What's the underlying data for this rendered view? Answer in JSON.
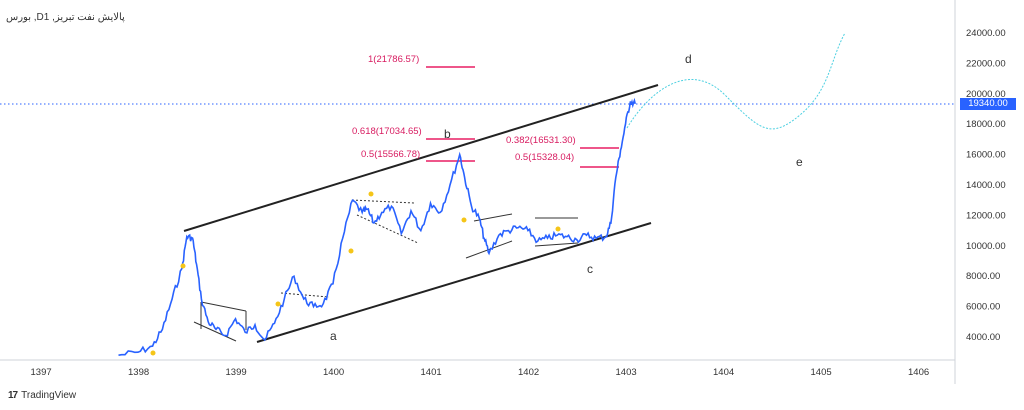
{
  "title": "بورس ,Dپالایش نفت تبریز, 1",
  "brand": {
    "logo": "17",
    "name": "TradingView"
  },
  "last_price": "19340.00",
  "colors": {
    "price": "#2962ff",
    "fib": "#e91e63",
    "channel": "#222222",
    "projection": "#4dd0e1",
    "dots": "#f5c518"
  },
  "chart_data": {
    "type": "line",
    "title": "بورس ,Dپالایش نفت تبریز, 1",
    "x_ticks": [
      "1397",
      "1398",
      "1399",
      "1400",
      "1401",
      "1402",
      "1403",
      "1404",
      "1405",
      "1406"
    ],
    "y_ticks": [
      "4000.00",
      "6000.00",
      "8000.00",
      "10000.00",
      "12000.00",
      "14000.00",
      "16000.00",
      "18000.00",
      "20000.00",
      "22000.00",
      "24000.00"
    ],
    "ylim": [
      3000,
      25000
    ],
    "xlim": [
      1396.8,
      1406.3
    ],
    "series": [
      {
        "x": [
          1397.8,
          1398.0,
          1398.15,
          1398.25,
          1398.35,
          1398.45,
          1398.5,
          1398.56,
          1398.6,
          1398.65,
          1398.72,
          1398.8,
          1398.9,
          1399.0,
          1399.1,
          1399.2,
          1399.3,
          1399.4,
          1399.5,
          1399.6,
          1399.7,
          1399.8,
          1399.9,
          1400.0,
          1400.1,
          1400.2,
          1400.3,
          1400.35,
          1400.42,
          1400.5,
          1400.6,
          1400.7,
          1400.8,
          1400.9,
          1401.0,
          1401.1,
          1401.2,
          1401.3,
          1401.35,
          1401.42,
          1401.5,
          1401.55,
          1401.6,
          1401.7,
          1401.8,
          1401.9,
          1402.0,
          1402.1,
          1402.2,
          1402.3,
          1402.4,
          1402.5,
          1402.6,
          1402.7,
          1402.8,
          1402.85,
          1402.9,
          1402.95,
          1403.0,
          1403.05,
          1403.1
        ],
        "y": [
          2800,
          3000,
          3400,
          4500,
          6500,
          8500,
          10600,
          10500,
          8800,
          6500,
          5000,
          4500,
          4100,
          5200,
          4300,
          4800,
          3800,
          4900,
          6500,
          8000,
          6500,
          6000,
          6200,
          7500,
          10500,
          13000,
          12200,
          12400,
          11500,
          12200,
          12600,
          10800,
          12300,
          11000,
          12800,
          12200,
          14000,
          16000,
          14500,
          12600,
          11800,
          10500,
          9500,
          10700,
          11000,
          11200,
          11000,
          10300,
          10500,
          10700,
          10600,
          10400,
          10700,
          10500,
          10600,
          11500,
          14500,
          16300,
          18000,
          19500,
          19340
        ]
      }
    ],
    "fib_levels": [
      {
        "label": "1(21786.57)",
        "value": 21786.57
      },
      {
        "label": "0.618(17034.65)",
        "value": 17034.65
      },
      {
        "label": "0.5(15566.78)",
        "value": 15566.78
      },
      {
        "label": "0.382(16531.30)",
        "value": 16531.3
      },
      {
        "label": "0.5(15328.04)",
        "value": 15328.04
      }
    ],
    "wave_labels": [
      "a",
      "b",
      "c",
      "d",
      "e"
    ],
    "grid": false
  }
}
